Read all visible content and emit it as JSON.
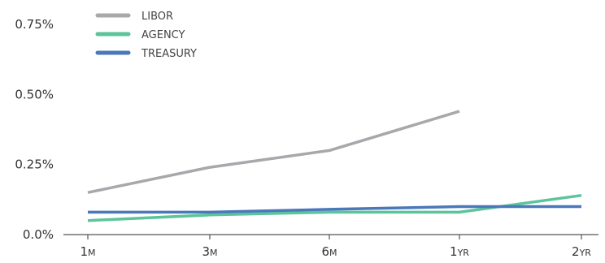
{
  "chart_data": {
    "type": "line",
    "categories": [
      "1M",
      "3M",
      "6M",
      "1YR",
      "2YR"
    ],
    "x_tick_labels": [
      {
        "main": "1",
        "suffix": "M"
      },
      {
        "main": "3",
        "suffix": "M"
      },
      {
        "main": "6",
        "suffix": "M"
      },
      {
        "main": "1",
        "suffix": "YR"
      },
      {
        "main": "2",
        "suffix": "YR"
      }
    ],
    "y_ticks": [
      0,
      0.25,
      0.5,
      0.75
    ],
    "y_tick_labels": [
      "0.0%",
      "0.25%",
      "0.50%",
      "0.75%"
    ],
    "ylim": [
      0,
      0.8
    ],
    "grid": false,
    "legend_position": "top-left",
    "series": [
      {
        "name": "LIBOR",
        "color": "#a6a8ab",
        "values": [
          0.15,
          0.24,
          0.3,
          0.44,
          null
        ]
      },
      {
        "name": "AGENCY",
        "color": "#5cc49b",
        "values": [
          0.05,
          0.07,
          0.08,
          0.08,
          0.14
        ]
      },
      {
        "name": "TREASURY",
        "color": "#4a78b9",
        "values": [
          0.08,
          0.08,
          0.09,
          0.1,
          0.1
        ]
      }
    ]
  }
}
